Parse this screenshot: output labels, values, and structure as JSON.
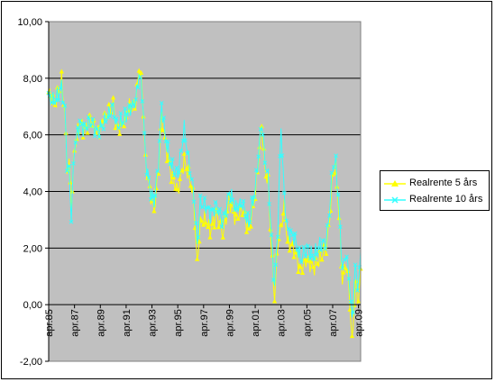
{
  "chart_data": {
    "type": "line",
    "title": "",
    "xlabel": "",
    "ylabel": "",
    "ylim": [
      -2,
      10
    ],
    "y_ticks": [
      "10,00",
      "8,00",
      "6,00",
      "4,00",
      "2,00",
      "0,00",
      "-2,00"
    ],
    "x_ticks": [
      "apr.85",
      "apr.87",
      "apr.89",
      "apr.91",
      "apr.93",
      "apr.95",
      "apr.97",
      "apr.99",
      "apr.01",
      "apr.03",
      "apr.05",
      "apr.07",
      "apr.09"
    ],
    "grid": "horizontal",
    "legend_position": "right",
    "x_start": "1985-04",
    "series": [
      {
        "name": "Realrente 5 års",
        "color": "#ffff00",
        "marker": "triangle",
        "knots": [
          [
            "1985-04",
            7.5
          ],
          [
            "1985-10",
            7.1
          ],
          [
            "1986-04",
            7.9
          ],
          [
            "1986-07",
            6.8
          ],
          [
            "1986-09",
            4.8
          ],
          [
            "1986-11",
            5.0
          ],
          [
            "1987-01",
            3.4
          ],
          [
            "1987-04",
            5.5
          ],
          [
            "1987-09",
            6.5
          ],
          [
            "1988-01",
            6.1
          ],
          [
            "1988-07",
            6.6
          ],
          [
            "1989-01",
            6.0
          ],
          [
            "1989-07",
            6.5
          ],
          [
            "1990-04",
            7.1
          ],
          [
            "1990-07",
            6.2
          ],
          [
            "1991-01",
            6.4
          ],
          [
            "1991-07",
            7.0
          ],
          [
            "1992-01",
            7.1
          ],
          [
            "1992-04",
            8.4
          ],
          [
            "1992-07",
            7.6
          ],
          [
            "1992-10",
            5.0
          ],
          [
            "1993-02",
            4.0
          ],
          [
            "1993-06",
            3.3
          ],
          [
            "1993-10",
            4.8
          ],
          [
            "1994-01",
            6.8
          ],
          [
            "1994-04",
            5.8
          ],
          [
            "1994-10",
            4.6
          ],
          [
            "1995-04",
            4.0
          ],
          [
            "1995-10",
            5.1
          ],
          [
            "1996-04",
            4.3
          ],
          [
            "1996-07",
            3.6
          ],
          [
            "1996-10",
            1.4
          ],
          [
            "1997-01",
            2.9
          ],
          [
            "1997-06",
            3.0
          ],
          [
            "1997-10",
            2.6
          ],
          [
            "1998-04",
            3.2
          ],
          [
            "1998-10",
            2.5
          ],
          [
            "1999-04",
            3.7
          ],
          [
            "1999-10",
            3.0
          ],
          [
            "2000-04",
            3.4
          ],
          [
            "2000-10",
            2.6
          ],
          [
            "2001-04",
            3.9
          ],
          [
            "2001-10",
            6.4
          ],
          [
            "2002-01",
            4.8
          ],
          [
            "2002-04",
            4.3
          ],
          [
            "2002-07",
            2.0
          ],
          [
            "2002-10",
            0.2
          ],
          [
            "2003-01",
            2.2
          ],
          [
            "2003-04",
            2.7
          ],
          [
            "2003-07",
            3.5
          ],
          [
            "2003-10",
            2.2
          ],
          [
            "2004-04",
            2.0
          ],
          [
            "2004-10",
            1.2
          ],
          [
            "2005-04",
            1.6
          ],
          [
            "2005-10",
            1.3
          ],
          [
            "2006-04",
            1.6
          ],
          [
            "2006-10",
            2.0
          ],
          [
            "2007-01",
            3.0
          ],
          [
            "2007-04",
            4.6
          ],
          [
            "2007-07",
            4.9
          ],
          [
            "2007-10",
            3.1
          ],
          [
            "2008-01",
            0.8
          ],
          [
            "2008-04",
            1.5
          ],
          [
            "2008-07",
            0.7
          ],
          [
            "2008-10",
            -1.4
          ],
          [
            "2009-01",
            0.8
          ],
          [
            "2009-04",
            0.1
          ],
          [
            "2009-06",
            1.1
          ]
        ]
      },
      {
        "name": "Realrente 10 års",
        "color": "#33ffff",
        "marker": "x",
        "knots": [
          [
            "1985-04",
            7.3
          ],
          [
            "1985-10",
            7.2
          ],
          [
            "1986-04",
            7.7
          ],
          [
            "1986-07",
            6.9
          ],
          [
            "1986-09",
            5.0
          ],
          [
            "1986-11",
            4.7
          ],
          [
            "1987-01",
            3.1
          ],
          [
            "1987-04",
            5.6
          ],
          [
            "1987-09",
            6.4
          ],
          [
            "1988-01",
            6.2
          ],
          [
            "1988-07",
            6.5
          ],
          [
            "1989-01",
            6.1
          ],
          [
            "1989-07",
            6.4
          ],
          [
            "1990-04",
            7.0
          ],
          [
            "1990-07",
            6.3
          ],
          [
            "1991-01",
            6.5
          ],
          [
            "1991-07",
            6.9
          ],
          [
            "1992-01",
            7.2
          ],
          [
            "1992-04",
            8.2
          ],
          [
            "1992-07",
            7.5
          ],
          [
            "1992-10",
            5.2
          ],
          [
            "1993-02",
            4.1
          ],
          [
            "1993-06",
            3.6
          ],
          [
            "1993-10",
            5.0
          ],
          [
            "1994-01",
            7.1
          ],
          [
            "1994-04",
            6.0
          ],
          [
            "1994-10",
            4.9
          ],
          [
            "1995-04",
            4.6
          ],
          [
            "1995-10",
            6.2
          ],
          [
            "1996-04",
            4.6
          ],
          [
            "1996-07",
            3.9
          ],
          [
            "1996-10",
            2.1
          ],
          [
            "1997-01",
            3.6
          ],
          [
            "1997-06",
            3.5
          ],
          [
            "1997-10",
            3.2
          ],
          [
            "1998-04",
            3.5
          ],
          [
            "1998-10",
            2.9
          ],
          [
            "1999-04",
            4.0
          ],
          [
            "1999-10",
            3.4
          ],
          [
            "2000-04",
            3.6
          ],
          [
            "2000-10",
            2.8
          ],
          [
            "2001-04",
            4.1
          ],
          [
            "2001-10",
            6.5
          ],
          [
            "2002-01",
            5.1
          ],
          [
            "2002-04",
            4.5
          ],
          [
            "2002-07",
            2.4
          ],
          [
            "2002-10",
            0.6
          ],
          [
            "2003-01",
            2.7
          ],
          [
            "2003-04",
            6.3
          ],
          [
            "2003-07",
            3.8
          ],
          [
            "2003-10",
            2.6
          ],
          [
            "2004-04",
            2.4
          ],
          [
            "2004-10",
            1.6
          ],
          [
            "2005-04",
            2.0
          ],
          [
            "2005-10",
            1.7
          ],
          [
            "2006-04",
            2.1
          ],
          [
            "2006-10",
            2.2
          ],
          [
            "2007-01",
            3.3
          ],
          [
            "2007-04",
            4.9
          ],
          [
            "2007-07",
            5.0
          ],
          [
            "2007-10",
            3.3
          ],
          [
            "2008-01",
            1.2
          ],
          [
            "2008-04",
            1.8
          ],
          [
            "2008-07",
            1.1
          ],
          [
            "2008-10",
            -0.6
          ],
          [
            "2009-01",
            1.3
          ],
          [
            "2009-04",
            0.6
          ],
          [
            "2009-06",
            1.9
          ]
        ]
      }
    ]
  },
  "colors": {
    "plot_background": "#c0c0c0",
    "gridline": "#000000"
  }
}
